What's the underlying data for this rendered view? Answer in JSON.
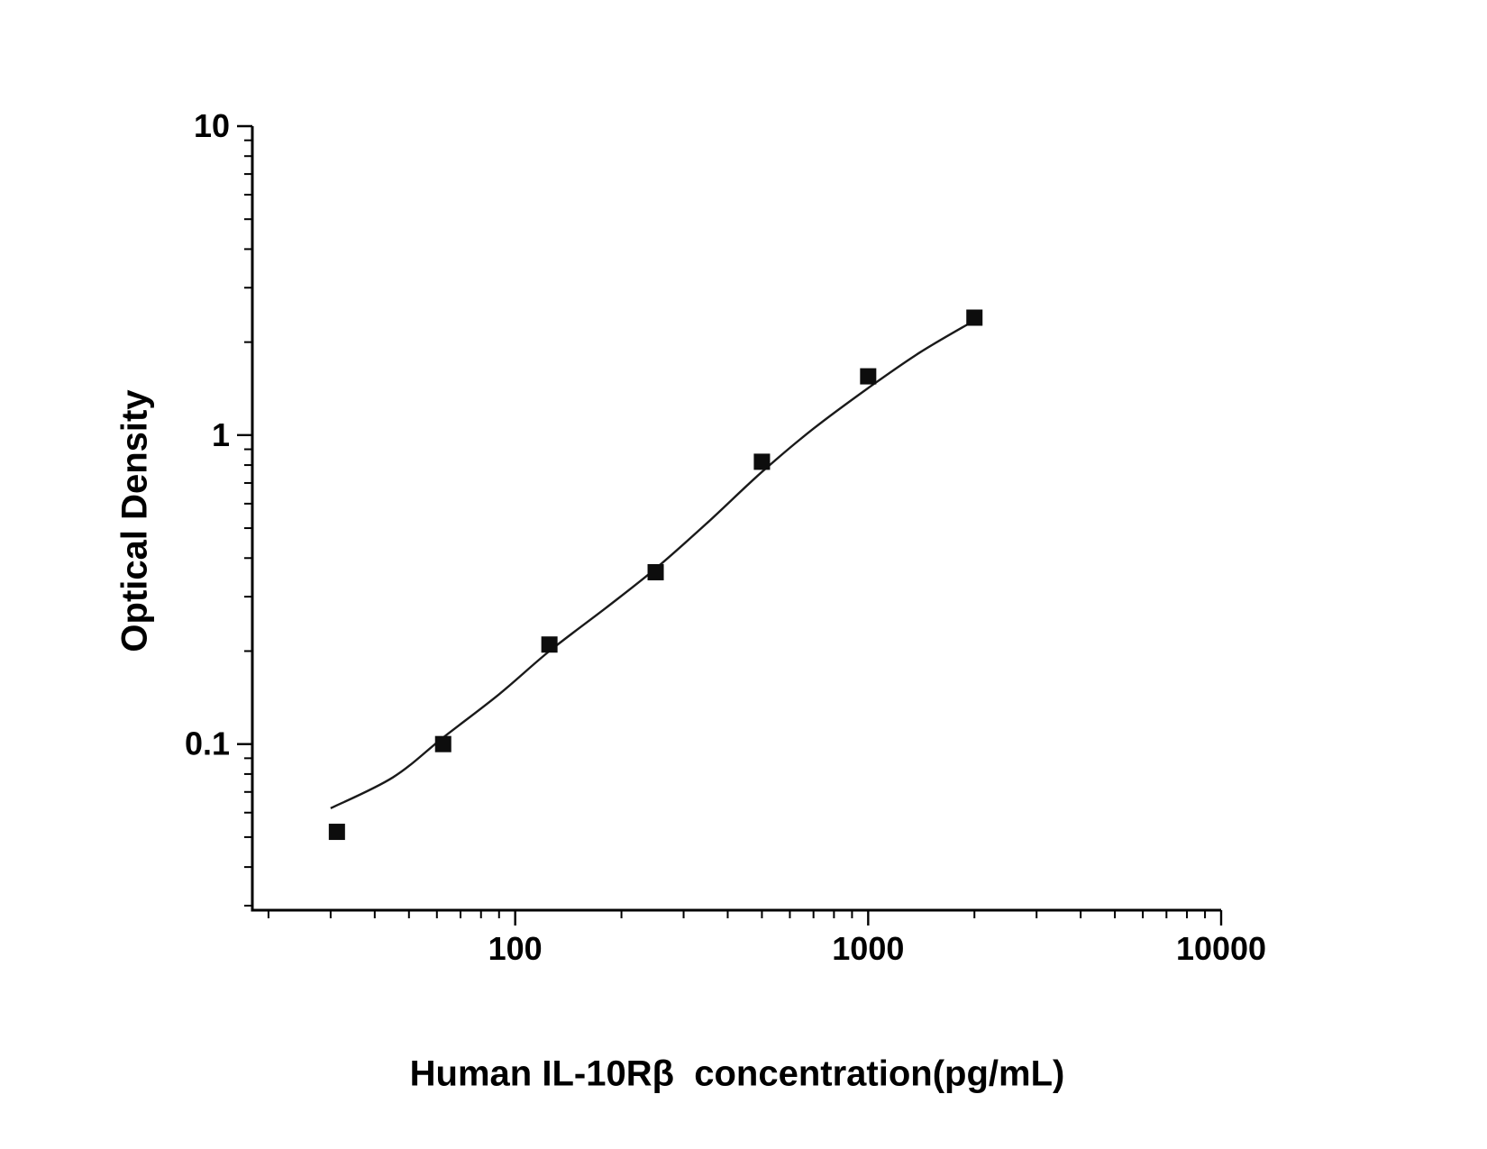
{
  "chart_data": {
    "type": "scatter",
    "title": "",
    "xlabel": "Human IL-10Rβ  concentration(pg/mL)",
    "ylabel": "Optical Density",
    "x_scale": "log",
    "y_scale": "log",
    "xlim": [
      18,
      10000
    ],
    "ylim": [
      0.029,
      10
    ],
    "x_ticks": [
      100,
      1000,
      10000
    ],
    "x_tick_labels": [
      "100",
      "1000",
      "10000"
    ],
    "y_ticks": [
      0.1,
      1,
      10
    ],
    "y_tick_labels": [
      "0.1",
      "1",
      "10"
    ],
    "grid": false,
    "legend": "none",
    "marker": "filled-square",
    "series": [
      {
        "name": "standard-points",
        "points": [
          {
            "x": 31.25,
            "y": 0.052
          },
          {
            "x": 62.5,
            "y": 0.1
          },
          {
            "x": 125,
            "y": 0.21
          },
          {
            "x": 250,
            "y": 0.36
          },
          {
            "x": 500,
            "y": 0.82
          },
          {
            "x": 1000,
            "y": 1.55
          },
          {
            "x": 2000,
            "y": 2.4
          }
        ]
      }
    ],
    "fit_curve": [
      [
        30,
        0.062
      ],
      [
        45,
        0.078
      ],
      [
        62.5,
        0.105
      ],
      [
        90,
        0.145
      ],
      [
        125,
        0.2
      ],
      [
        180,
        0.275
      ],
      [
        250,
        0.37
      ],
      [
        350,
        0.52
      ],
      [
        500,
        0.76
      ],
      [
        700,
        1.05
      ],
      [
        1000,
        1.42
      ],
      [
        1400,
        1.85
      ],
      [
        2000,
        2.35
      ]
    ],
    "colors": {
      "axis": "#000000",
      "line": "#1a1a1a",
      "marker": "#0d0d0d",
      "tick_label": "#000000"
    }
  }
}
